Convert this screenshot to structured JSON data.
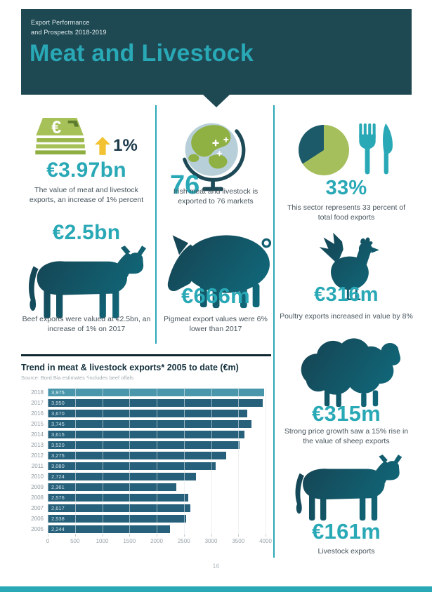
{
  "header": {
    "kicker_line1": "Export Performance",
    "kicker_line2": "and Prospects 2018-2019",
    "title": "Meat and Livestock"
  },
  "stats": {
    "total": {
      "value": "€3.97bn",
      "change": "1%",
      "caption": "The value of meat and livestock exports, an increase of 1% percent",
      "icon": "money-stack-icon"
    },
    "markets": {
      "value": "76",
      "caption": "Irish meat and livestock is exported to 76 markets",
      "icon": "globe-icon"
    },
    "food_share": {
      "value": "33%",
      "caption": "This sector represents 33 percent of total food exports",
      "icon": "pie-chart-cutlery-icon"
    },
    "beef": {
      "value": "€2.5bn",
      "caption": "Beef exports were valued at €2.5bn, an increase of 1% on 2017",
      "icon": "cow-icon"
    },
    "pigmeat": {
      "value": "€666m",
      "caption": "Pigmeat export values were 6% lower than 2017",
      "icon": "pig-icon"
    },
    "poultry": {
      "value": "€316m",
      "caption": "Poultry exports increased in value by 8%",
      "icon": "chicken-icon"
    },
    "sheep": {
      "value": "€315m",
      "caption": "Strong price growth saw a 15% rise in the value of sheep exports",
      "icon": "sheep-icon"
    },
    "livestock": {
      "value": "€161m",
      "caption": "Livestock exports",
      "icon": "cow-icon"
    }
  },
  "chart_data": {
    "type": "bar",
    "orientation": "horizontal",
    "title": "Trend in meat & livestock exports* 2005 to date (€m)",
    "source": "Source: Bord Bia estimates *includes beef offals",
    "categories": [
      "2018",
      "2017",
      "2016",
      "2015",
      "2014",
      "2013",
      "2012",
      "2011",
      "2010",
      "2009",
      "2008",
      "2007",
      "2006",
      "2005"
    ],
    "values": [
      3975,
      3950,
      3670,
      3745,
      3615,
      3520,
      3275,
      3080,
      2724,
      2361,
      2576,
      2617,
      2538,
      2244
    ],
    "value_labels": [
      "3,975",
      "3,950",
      "3,670",
      "3,745",
      "3,615",
      "3,520",
      "3,275",
      "3,080",
      "2,724",
      "2,361",
      "2,576",
      "2,617",
      "2,538",
      "2,244"
    ],
    "xlabel": "",
    "ylabel": "",
    "xlim": [
      0,
      4000
    ],
    "x_ticks": [
      0,
      500,
      1000,
      1500,
      2000,
      2500,
      3000,
      3500,
      4000
    ],
    "grid": true,
    "legend": "none",
    "highlight_category": "2018",
    "bar_color": "#27607a",
    "highlight_color": "#4a96ab"
  },
  "footer": {
    "page_number": "16"
  },
  "colors": {
    "header_bg": "#1e4953",
    "accent_teal": "#29a8b6",
    "silhouette_dark": "#16404f",
    "silhouette_teal": "#0f6e80",
    "money_green": "#a7c159",
    "money_green_dark": "#9ab64b",
    "arrow_yellow": "#f2c232",
    "pie_green": "#a4bf5c",
    "pie_dark": "#1c5a6a"
  }
}
